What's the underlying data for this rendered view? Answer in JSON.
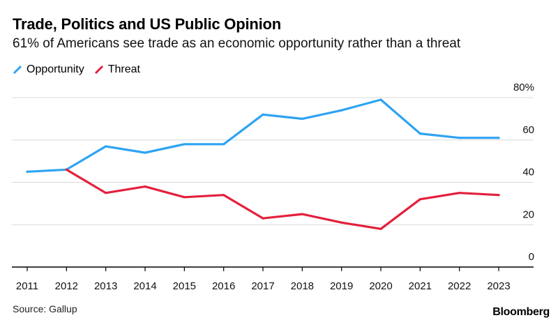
{
  "title": "Trade, Politics and US Public Opinion",
  "subtitle": "61% of Americans see trade as an economic opportunity rather than a threat",
  "source": "Source: Gallup",
  "brand": "Bloomberg",
  "colors": {
    "opportunity": "#2ea3f2",
    "threat": "#e3203c",
    "grid": "#d9d9d9",
    "axis": "#000000"
  },
  "chart_data": {
    "type": "line",
    "x": [
      "2011",
      "2012",
      "2013",
      "2014",
      "2015",
      "2016",
      "2017",
      "2018",
      "2019",
      "2020",
      "2021",
      "2022",
      "2023"
    ],
    "series": [
      {
        "name": "Opportunity",
        "values": [
          45,
          46,
          57,
          54,
          58,
          58,
          72,
          70,
          74,
          79,
          63,
          61,
          61
        ]
      },
      {
        "name": "Threat",
        "values": [
          null,
          46,
          35,
          38,
          33,
          34,
          23,
          25,
          21,
          18,
          32,
          35,
          34
        ]
      }
    ],
    "ylim": [
      0,
      80
    ],
    "yticks": [
      0,
      20,
      40,
      60,
      80
    ],
    "ytick_labels": [
      "0",
      "20",
      "40",
      "60",
      "80%"
    ],
    "grid": true,
    "legend_placement": "top-left"
  }
}
